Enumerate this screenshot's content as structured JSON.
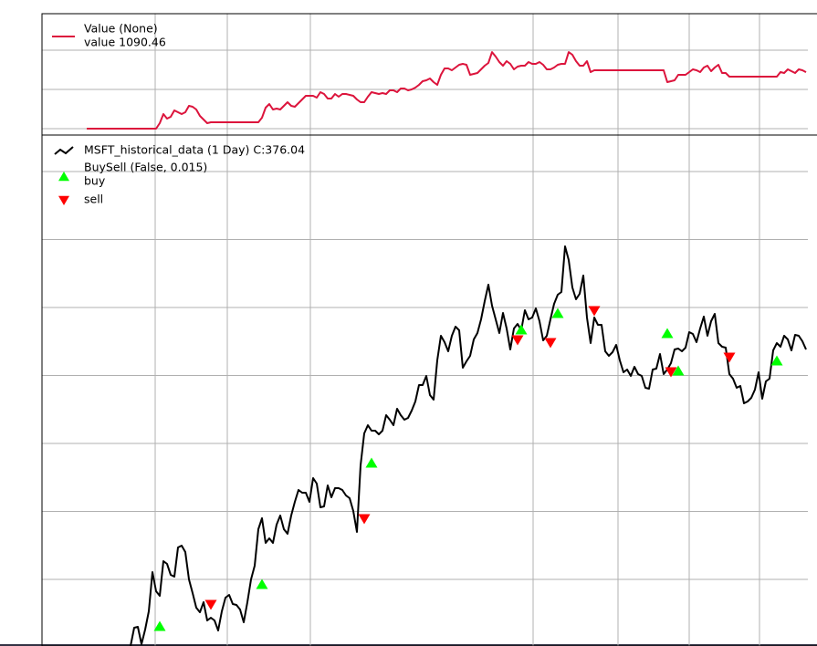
{
  "chart_data": [
    {
      "type": "line",
      "xlim": [
        -12.25,
        197.5
      ],
      "xticks": [
        18.75,
        38.5,
        61.25,
        122.25,
        145.5,
        165,
        184.25
      ],
      "ylim": [
        989.8,
        1184
      ],
      "yticks": [
        1000,
        1062.8,
        1125.6
      ],
      "grid": true,
      "legend": "upper left",
      "note": "value 1090.46",
      "series": [
        {
          "name": "Value (None)",
          "color": "#dc143c",
          "values": [
            1000,
            1000,
            1000,
            1000,
            1000,
            1000,
            1000,
            1000,
            1000,
            1000,
            1000,
            1000,
            1000,
            1000,
            1000,
            1000,
            1000,
            1000,
            1000,
            1000,
            1008.8,
            1023.4,
            1016.1,
            1019,
            1029.2,
            1026.3,
            1023.4,
            1026.3,
            1036.5,
            1035,
            1030.7,
            1020.4,
            1014.6,
            1008.8,
            1010.2,
            1010.2,
            1010.2,
            1010.2,
            1010.2,
            1010.2,
            1010.2,
            1010.2,
            1010.2,
            1010.2,
            1010.2,
            1010.2,
            1010.2,
            1010.2,
            1017.5,
            1033.6,
            1039.4,
            1030.7,
            1032.1,
            1030.7,
            1036.5,
            1042.3,
            1036.5,
            1035,
            1040.9,
            1046.7,
            1052.6,
            1052.6,
            1052.6,
            1049.6,
            1058.4,
            1055.5,
            1048.2,
            1048.2,
            1055.5,
            1051.1,
            1055.5,
            1055.5,
            1054,
            1052.6,
            1046.7,
            1042.3,
            1042.3,
            1051.1,
            1058.4,
            1056.9,
            1055.5,
            1056.9,
            1055.5,
            1061.3,
            1061.3,
            1058.4,
            1064.2,
            1064.2,
            1061.3,
            1062.8,
            1065.7,
            1070.1,
            1075.9,
            1077.4,
            1080.3,
            1074.5,
            1070.1,
            1086.1,
            1096.4,
            1096.4,
            1093.4,
            1097.8,
            1102.2,
            1103.7,
            1102.2,
            1086.1,
            1087.6,
            1089.1,
            1094.9,
            1100.7,
            1105.1,
            1122.6,
            1115.3,
            1106.6,
            1100.7,
            1108,
            1103.7,
            1094.9,
            1099.3,
            1100.7,
            1100.7,
            1106.6,
            1103.7,
            1103.7,
            1106.6,
            1102.2,
            1094.9,
            1094.9,
            1097.8,
            1102.2,
            1103.7,
            1103.7,
            1122.6,
            1118.3,
            1108,
            1100.7,
            1100.7,
            1108,
            1090.5,
            1093.4,
            1093.4,
            1093.4,
            1093.4,
            1093.4,
            1093.4,
            1093.4,
            1093.4,
            1093.4,
            1093.4,
            1093.4,
            1093.4,
            1093.4,
            1093.4,
            1093.4,
            1093.4,
            1093.4,
            1093.4,
            1093.4,
            1093.4,
            1074.5,
            1075.9,
            1077.4,
            1086.1,
            1086.1,
            1086.1,
            1090.5,
            1094.9,
            1093.4,
            1090.5,
            1097.8,
            1100.7,
            1092,
            1097.8,
            1102.2,
            1089.1,
            1089.1,
            1083.2,
            1083.2,
            1083.2,
            1083.2,
            1083.2,
            1083.2,
            1083.2,
            1083.2,
            1083.2,
            1083.2,
            1083.2,
            1083.2,
            1083.2,
            1083.2,
            1090.5,
            1089.1,
            1094.9,
            1092,
            1089.1,
            1094.9,
            1093.4,
            1090.46
          ]
        }
      ]
    },
    {
      "type": "line",
      "xlim": [
        -12.25,
        197.5
      ],
      "xticks": [
        18.75,
        38.5,
        61.25,
        122.25,
        145.5,
        165,
        184.25
      ],
      "ylim": [
        213.5,
        493.5
      ],
      "yticks": [
        250,
        287.25,
        324.5,
        361.75,
        399,
        436.25,
        473.5
      ],
      "grid": true,
      "legend": "upper left",
      "indicator": "BuySell (False, 0.015)",
      "series": [
        {
          "name": "MSFT_historical_data (1 Day) C:376.04",
          "color": "#000000",
          "values": [
            null,
            null,
            null,
            null,
            null,
            null,
            null,
            null,
            null,
            null,
            null,
            null,
            213.5,
            223.5,
            224,
            214.5,
            222.5,
            232.5,
            254,
            243.5,
            241,
            260,
            258.5,
            252.5,
            251.5,
            267.5,
            268.5,
            265,
            250,
            242.5,
            234.5,
            232,
            237.5,
            227.5,
            229,
            227.5,
            222,
            232.5,
            240,
            241.5,
            236.5,
            236,
            233.5,
            226.5,
            237.5,
            250,
            257.5,
            277.5,
            283.5,
            270,
            272.5,
            270,
            280,
            285,
            277.5,
            275,
            285,
            292.5,
            299,
            297.5,
            297.5,
            292.5,
            305.5,
            302.5,
            289.5,
            290,
            301.5,
            295,
            300,
            300,
            299,
            296,
            294.5,
            287.5,
            276,
            312.5,
            330,
            334.5,
            331.5,
            331.5,
            329.5,
            331.5,
            340,
            337.5,
            334.5,
            343.5,
            340,
            337.5,
            338.5,
            342.5,
            347.5,
            356.5,
            356.5,
            361.5,
            351,
            348.5,
            370,
            383.5,
            380,
            375,
            383.5,
            388.5,
            386.5,
            366,
            369.5,
            372.5,
            381.5,
            385,
            392.5,
            402.5,
            411.5,
            400,
            392.5,
            385,
            396,
            387.5,
            376,
            387.5,
            390,
            386.5,
            397.5,
            392.5,
            393.5,
            398.5,
            391.5,
            381,
            383.5,
            392.5,
            401,
            406,
            407.5,
            432.5,
            425,
            410,
            403.5,
            406.5,
            416.5,
            393.5,
            379.5,
            393.5,
            389.5,
            389.5,
            375,
            372.5,
            374.5,
            378.5,
            370,
            363.5,
            365,
            361.5,
            366.5,
            362.5,
            361.5,
            355,
            354.5,
            365,
            365.5,
            373.5,
            362.5,
            365,
            368.5,
            376,
            376.5,
            375,
            377,
            385.5,
            384.5,
            380,
            387.5,
            394,
            383.5,
            391.5,
            395.5,
            379.5,
            377.5,
            377,
            362.5,
            360,
            355,
            356,
            346.5,
            347.5,
            349.5,
            354,
            363.5,
            349,
            358.5,
            360,
            375.5,
            379.5,
            377.5,
            383.5,
            381.5,
            375.5,
            384,
            383.5,
            380.5,
            376
          ]
        },
        {
          "name": "buy",
          "type": "scatter",
          "marker": "triangle-up",
          "color": "#00ff00",
          "x": [
            20,
            48,
            78,
            119,
            129,
            159,
            162,
            189
          ],
          "values": [
            224,
            247,
            313.5,
            386.5,
            395.5,
            384.5,
            364,
            369.5
          ]
        },
        {
          "name": "sell",
          "type": "scatter",
          "marker": "triangle-down",
          "color": "#ff0000",
          "x": [
            34,
            76,
            118,
            127,
            139,
            160,
            176
          ],
          "values": [
            236.5,
            283.5,
            381.5,
            380,
            397.5,
            364,
            372
          ]
        }
      ]
    }
  ]
}
